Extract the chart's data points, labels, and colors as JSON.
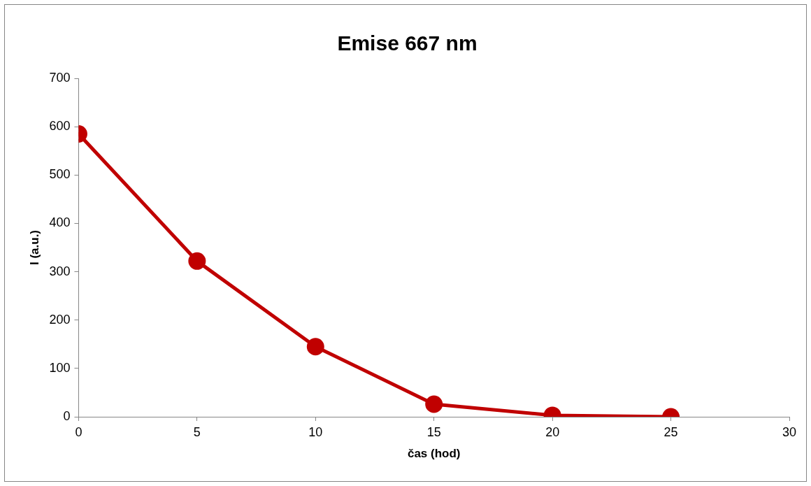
{
  "chart_data": {
    "type": "line",
    "title": "Emise 667 nm",
    "xlabel": "čas (hod)",
    "ylabel": "I (a.u.)",
    "x": [
      0,
      5,
      10,
      15,
      20,
      25
    ],
    "series": [
      {
        "color": "#c00000",
        "values": [
          585,
          322,
          145,
          26,
          3,
          0
        ]
      }
    ],
    "xlim": [
      0,
      30
    ],
    "xticks": [
      0,
      5,
      10,
      15,
      20,
      25,
      30
    ],
    "ylim": [
      0,
      700
    ],
    "yticks": [
      0,
      100,
      200,
      300,
      400,
      500,
      600,
      700
    ],
    "grid": false,
    "legend": false,
    "marker": "circle",
    "line_style": "solid"
  }
}
